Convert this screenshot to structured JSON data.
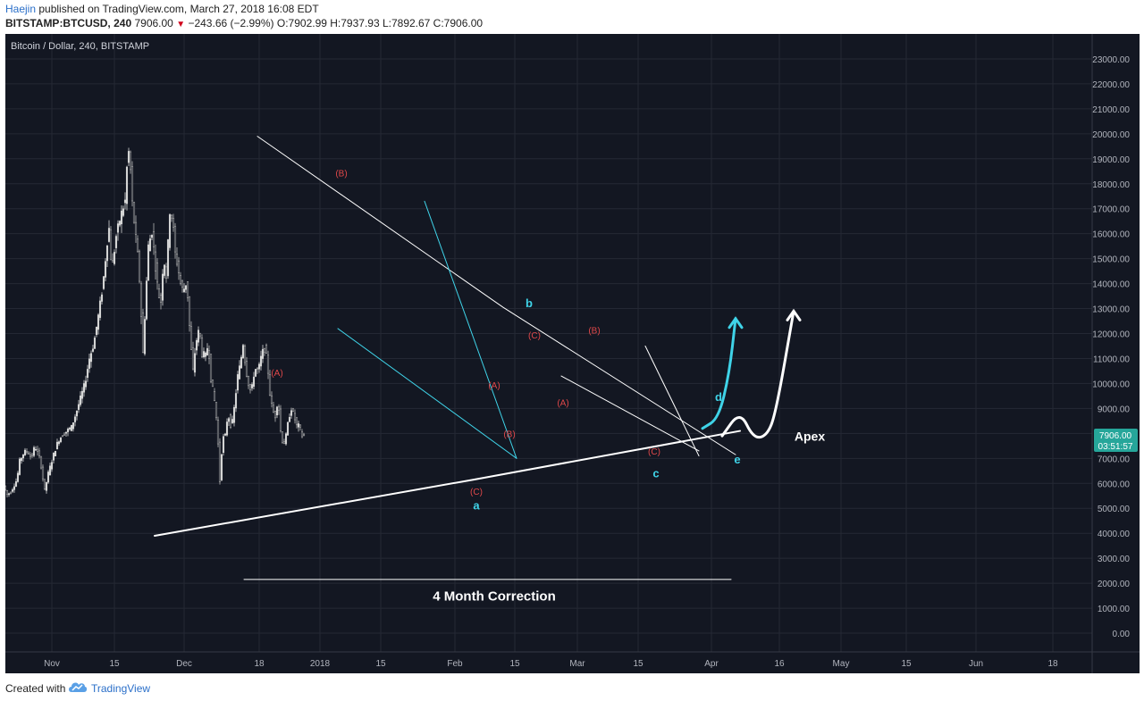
{
  "header": {
    "author": "Haejin",
    "published": " published on TradingView.com, March 27, 2018 16:08 EDT",
    "symbol": "BITSTAMP:BTCUSD, 240",
    "price": "7906.00",
    "change": "−243.66 (−2.99%)",
    "ohlc": "O:7902.99 H:7937.93 L:7892.67 C:7906.00"
  },
  "footer": {
    "created_with": "Created with",
    "brand": "TradingView"
  },
  "colors": {
    "background": "#131722",
    "grid": "#242834",
    "candle_up": "#d7d7d7",
    "candle_down": "#b4b4b4",
    "cyan": "#3fd3e8",
    "red_label": "#e0484a",
    "white": "#ffffff",
    "price_tag": "#26a69a"
  },
  "chart_data": {
    "type": "candlestick",
    "title": "Bitcoin / Dollar, 240, BITSTAMP",
    "y_ticks": [
      23000,
      22000,
      21000,
      20000,
      19000,
      18000,
      17000,
      16000,
      15000,
      14000,
      13000,
      12000,
      11000,
      10000,
      9000,
      8000,
      7000,
      6000,
      5000,
      4000,
      3000,
      2000,
      1000,
      0
    ],
    "y_decimals": 2,
    "ylim": [
      -750,
      24000
    ],
    "x_ticks": [
      "Nov",
      "15",
      "Dec",
      "18",
      "2018",
      "15",
      "Feb",
      "15",
      "Mar",
      "15",
      "Apr",
      "16",
      "May",
      "15",
      "Jun",
      "18"
    ],
    "price_series": [
      [
        0,
        5900
      ],
      [
        4,
        5550
      ],
      [
        8,
        5650
      ],
      [
        15,
        6150
      ],
      [
        18,
        6900
      ],
      [
        23,
        7250
      ],
      [
        27,
        7300
      ],
      [
        31,
        7000
      ],
      [
        35,
        7500
      ],
      [
        41,
        6950
      ],
      [
        46,
        5700
      ],
      [
        50,
        6400
      ],
      [
        56,
        7150
      ],
      [
        61,
        7700
      ],
      [
        66,
        7950
      ],
      [
        71,
        8100
      ],
      [
        76,
        8250
      ],
      [
        81,
        8800
      ],
      [
        86,
        9400
      ],
      [
        91,
        10000
      ],
      [
        96,
        11000
      ],
      [
        101,
        11600
      ],
      [
        106,
        12700
      ],
      [
        111,
        13900
      ],
      [
        116,
        15700
      ],
      [
        118,
        16200
      ],
      [
        121,
        14500
      ],
      [
        126,
        15900
      ],
      [
        131,
        16700
      ],
      [
        136,
        17300
      ],
      [
        139,
        19300
      ],
      [
        141,
        19200
      ],
      [
        144,
        17200
      ],
      [
        148,
        15800
      ],
      [
        151,
        14800
      ],
      [
        153,
        13500
      ],
      [
        156,
        11200
      ],
      [
        159,
        13400
      ],
      [
        162,
        15500
      ],
      [
        166,
        16100
      ],
      [
        170,
        14700
      ],
      [
        173,
        13600
      ],
      [
        176,
        13300
      ],
      [
        179,
        15100
      ],
      [
        182,
        14300
      ],
      [
        186,
        16900
      ],
      [
        189,
        16600
      ],
      [
        192,
        15200
      ],
      [
        195,
        14700
      ],
      [
        198,
        14000
      ],
      [
        201,
        13700
      ],
      [
        205,
        14100
      ],
      [
        209,
        11700
      ],
      [
        212,
        10500
      ],
      [
        215,
        11600
      ],
      [
        219,
        12200
      ],
      [
        222,
        11200
      ],
      [
        226,
        11100
      ],
      [
        229,
        11600
      ],
      [
        232,
        10200
      ],
      [
        236,
        9300
      ],
      [
        239,
        8300
      ],
      [
        242,
        6100
      ],
      [
        245,
        7800
      ],
      [
        248,
        7900
      ],
      [
        251,
        8800
      ],
      [
        255,
        8200
      ],
      [
        258,
        9000
      ],
      [
        262,
        10300
      ],
      [
        265,
        10800
      ],
      [
        268,
        11600
      ],
      [
        271,
        10600
      ],
      [
        274,
        10000
      ],
      [
        277,
        9600
      ],
      [
        281,
        10600
      ],
      [
        285,
        10500
      ],
      [
        289,
        11200
      ],
      [
        292,
        11400
      ],
      [
        295,
        10900
      ],
      [
        298,
        9600
      ],
      [
        301,
        8900
      ],
      [
        304,
        8700
      ],
      [
        307,
        9400
      ],
      [
        310,
        8100
      ],
      [
        313,
        7500
      ],
      [
        316,
        7900
      ],
      [
        319,
        8600
      ],
      [
        322,
        9000
      ],
      [
        325,
        8700
      ],
      [
        328,
        8300
      ],
      [
        331,
        8300
      ],
      [
        334,
        7900
      ]
    ],
    "y_lines": [
      {
        "name": "upper-trendline",
        "color": "white",
        "width": 1,
        "points": [
          [
            0,
            19900
          ],
          [
            275,
            13050
          ],
          [
            535,
            7150
          ]
        ]
      },
      {
        "name": "lower-trendline",
        "color": "white",
        "width": 2,
        "points": [
          [
            -115,
            3900
          ],
          [
            242,
            6150
          ],
          [
            540,
            8100
          ]
        ]
      },
      {
        "name": "falling-wedge-upper",
        "color": "cyan",
        "width": 1,
        "points": [
          [
            187,
            17300
          ],
          [
            290,
            7000
          ]
        ]
      },
      {
        "name": "falling-wedge-lower",
        "color": "cyan",
        "width": 1,
        "points": [
          [
            90,
            12200
          ],
          [
            290,
            7000
          ]
        ]
      },
      {
        "name": "channel-upper",
        "color": "white",
        "width": 1,
        "points": [
          [
            434,
            11500
          ],
          [
            494,
            7100
          ]
        ]
      },
      {
        "name": "channel-lower",
        "color": "white",
        "width": 1,
        "points": [
          [
            340,
            10300
          ],
          [
            494,
            7300
          ]
        ]
      },
      {
        "name": "correction-span",
        "color": "white",
        "width": 1,
        "points": [
          [
            -15,
            2150
          ],
          [
            530,
            2150
          ]
        ]
      }
    ],
    "projection_cyan": [
      [
        498,
        8200
      ],
      [
        516,
        8600
      ],
      [
        528,
        10400
      ],
      [
        535,
        12600
      ]
    ],
    "projection_white": [
      [
        520,
        7900
      ],
      [
        540,
        8900
      ],
      [
        555,
        7800
      ],
      [
        570,
        7900
      ],
      [
        580,
        8800
      ],
      [
        600,
        12900
      ]
    ],
    "annotations": [
      {
        "text": "(B)",
        "x": 94,
        "y": 18300,
        "color": "red",
        "size": 10
      },
      {
        "text": "(A)",
        "x": 22,
        "y": 10300,
        "color": "red",
        "size": 10
      },
      {
        "text": "(A)",
        "x": 265,
        "y": 9800,
        "color": "red",
        "size": 10
      },
      {
        "text": "(B)",
        "x": 282,
        "y": 7850,
        "color": "red",
        "size": 10
      },
      {
        "text": "(C)",
        "x": 245,
        "y": 5550,
        "color": "red",
        "size": 10
      },
      {
        "text": "(C)",
        "x": 310,
        "y": 11800,
        "color": "red",
        "size": 10
      },
      {
        "text": "(A)",
        "x": 342,
        "y": 9100,
        "color": "red",
        "size": 10
      },
      {
        "text": "(B)",
        "x": 377,
        "y": 12000,
        "color": "red",
        "size": 10
      },
      {
        "text": "(C)",
        "x": 444,
        "y": 7150,
        "color": "red",
        "size": 10
      },
      {
        "text": "a",
        "x": 245,
        "y": 4950,
        "color": "cyan",
        "size": 13
      },
      {
        "text": "b",
        "x": 304,
        "y": 13050,
        "color": "cyan",
        "size": 13
      },
      {
        "text": "c",
        "x": 446,
        "y": 6250,
        "color": "cyan",
        "size": 13
      },
      {
        "text": "d",
        "x": 516,
        "y": 9300,
        "color": "cyan",
        "size": 13
      },
      {
        "text": "e",
        "x": 537,
        "y": 6800,
        "color": "cyan",
        "size": 13
      },
      {
        "text": "Apex",
        "x": 618,
        "y": 7700,
        "color": "white",
        "size": 14
      },
      {
        "text": "4 Month Correction",
        "x": 265,
        "y": 1300,
        "color": "white",
        "size": 15
      }
    ],
    "last_price": "7906.00",
    "countdown": "03:51:57"
  }
}
